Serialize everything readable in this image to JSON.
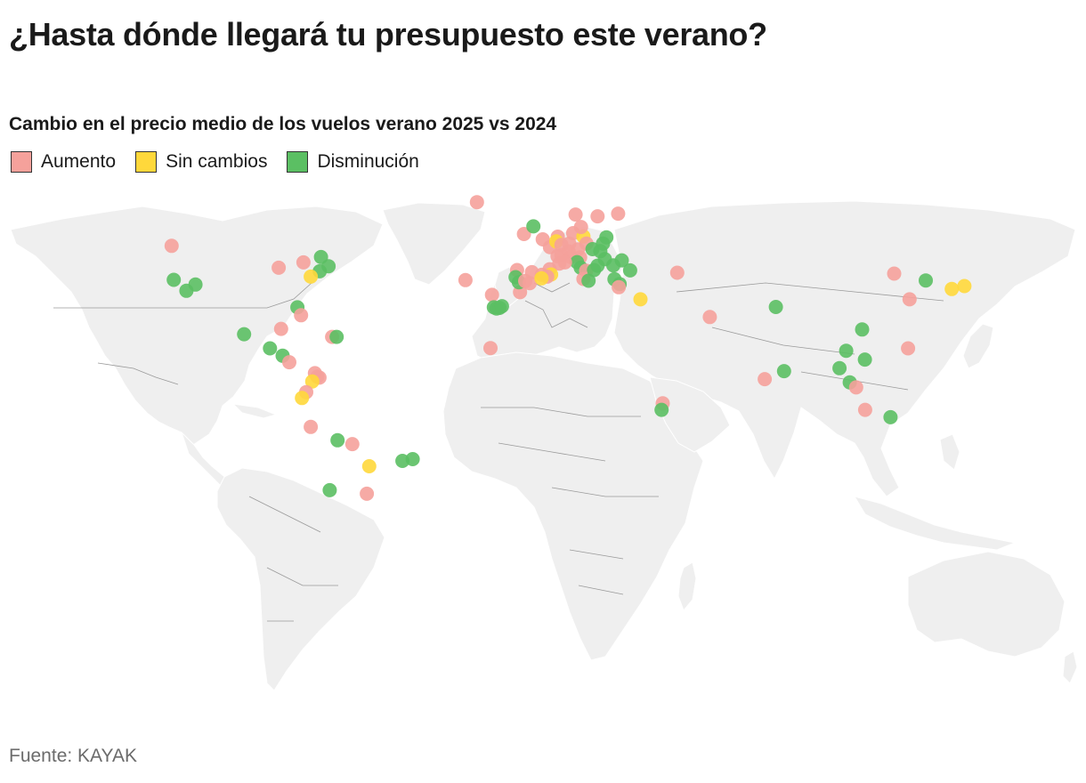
{
  "title": "¿Hasta dónde llegará tu presupuesto este verano?",
  "subtitle": "Cambio en el precio medio de los vuelos verano 2025 vs 2024",
  "legend": [
    {
      "key": "increase",
      "label": "Aumento",
      "color": "#F5A19B"
    },
    {
      "key": "same",
      "label": "Sin cambios",
      "color": "#FFD83B"
    },
    {
      "key": "decrease",
      "label": "Disminución",
      "color": "#5BBF63"
    }
  ],
  "source": "Fuente: KAYAK",
  "map": {
    "land_color": "#EFEFEF",
    "border_color": "#9A9A9A",
    "projection": "equirectangular",
    "markers": [
      {
        "lon": -123.1,
        "lat": 49.3,
        "status": "increase"
      },
      {
        "lon": -122.4,
        "lat": 37.8,
        "status": "decrease"
      },
      {
        "lon": -118.2,
        "lat": 34.1,
        "status": "decrease"
      },
      {
        "lon": -115.2,
        "lat": 36.2,
        "status": "decrease"
      },
      {
        "lon": -87.6,
        "lat": 41.9,
        "status": "increase"
      },
      {
        "lon": -79.4,
        "lat": 43.7,
        "status": "increase"
      },
      {
        "lon": -73.6,
        "lat": 45.5,
        "status": "decrease"
      },
      {
        "lon": -71.1,
        "lat": 42.4,
        "status": "decrease"
      },
      {
        "lon": -74.0,
        "lat": 40.7,
        "status": "decrease"
      },
      {
        "lon": -77.0,
        "lat": 38.9,
        "status": "same"
      },
      {
        "lon": -81.4,
        "lat": 28.5,
        "status": "decrease"
      },
      {
        "lon": -80.2,
        "lat": 25.8,
        "status": "increase"
      },
      {
        "lon": -99.1,
        "lat": 19.4,
        "status": "decrease"
      },
      {
        "lon": -86.8,
        "lat": 21.2,
        "status": "increase"
      },
      {
        "lon": -69.9,
        "lat": 18.5,
        "status": "increase"
      },
      {
        "lon": -68.4,
        "lat": 18.5,
        "status": "decrease"
      },
      {
        "lon": -90.5,
        "lat": 14.6,
        "status": "decrease"
      },
      {
        "lon": -86.3,
        "lat": 12.1,
        "status": "decrease"
      },
      {
        "lon": -84.1,
        "lat": 9.9,
        "status": "increase"
      },
      {
        "lon": -75.6,
        "lat": 6.2,
        "status": "increase"
      },
      {
        "lon": -74.8,
        "lat": 5.0,
        "status": "increase"
      },
      {
        "lon": -74.1,
        "lat": 4.7,
        "status": "increase"
      },
      {
        "lon": -76.5,
        "lat": 3.4,
        "status": "same"
      },
      {
        "lon": -78.5,
        "lat": -0.2,
        "status": "increase"
      },
      {
        "lon": -79.9,
        "lat": -2.2,
        "status": "same"
      },
      {
        "lon": -77.0,
        "lat": -12.0,
        "status": "increase"
      },
      {
        "lon": -68.1,
        "lat": -16.5,
        "status": "decrease"
      },
      {
        "lon": -63.2,
        "lat": -17.8,
        "status": "increase"
      },
      {
        "lon": -57.6,
        "lat": -25.3,
        "status": "same"
      },
      {
        "lon": -46.6,
        "lat": -23.5,
        "status": "decrease"
      },
      {
        "lon": -43.2,
        "lat": -22.9,
        "status": "decrease"
      },
      {
        "lon": -70.7,
        "lat": -33.4,
        "status": "decrease"
      },
      {
        "lon": -58.4,
        "lat": -34.6,
        "status": "increase"
      },
      {
        "lon": -21.9,
        "lat": 64.1,
        "status": "increase"
      },
      {
        "lon": -25.7,
        "lat": 37.7,
        "status": "increase"
      },
      {
        "lon": -16.9,
        "lat": 32.7,
        "status": "increase"
      },
      {
        "lon": -16.3,
        "lat": 28.5,
        "status": "decrease"
      },
      {
        "lon": -15.4,
        "lat": 28.1,
        "status": "decrease"
      },
      {
        "lon": -14.4,
        "lat": 28.3,
        "status": "decrease"
      },
      {
        "lon": -13.6,
        "lat": 28.9,
        "status": "decrease"
      },
      {
        "lon": -7.6,
        "lat": 33.6,
        "status": "increase"
      },
      {
        "lon": -17.4,
        "lat": 14.7,
        "status": "increase"
      },
      {
        "lon": -6.3,
        "lat": 53.3,
        "status": "increase"
      },
      {
        "lon": -3.2,
        "lat": 55.9,
        "status": "decrease"
      },
      {
        "lon": -0.1,
        "lat": 51.5,
        "status": "increase"
      },
      {
        "lon": 2.3,
        "lat": 48.9,
        "status": "increase"
      },
      {
        "lon": 4.9,
        "lat": 52.4,
        "status": "increase"
      },
      {
        "lon": 4.4,
        "lat": 50.8,
        "status": "same"
      },
      {
        "lon": 6.1,
        "lat": 49.6,
        "status": "increase"
      },
      {
        "lon": 8.7,
        "lat": 50.1,
        "status": "increase"
      },
      {
        "lon": 10.0,
        "lat": 53.6,
        "status": "increase"
      },
      {
        "lon": 13.4,
        "lat": 52.5,
        "status": "same"
      },
      {
        "lon": 12.6,
        "lat": 55.7,
        "status": "increase"
      },
      {
        "lon": 10.8,
        "lat": 59.9,
        "status": "increase"
      },
      {
        "lon": 18.1,
        "lat": 59.3,
        "status": "increase"
      },
      {
        "lon": 24.9,
        "lat": 60.2,
        "status": "increase"
      },
      {
        "lon": 21.0,
        "lat": 52.2,
        "status": "decrease"
      },
      {
        "lon": 19.9,
        "lat": 50.1,
        "status": "decrease"
      },
      {
        "lon": 14.4,
        "lat": 50.1,
        "status": "increase"
      },
      {
        "lon": 16.4,
        "lat": 48.2,
        "status": "decrease"
      },
      {
        "lon": 19.0,
        "lat": 47.5,
        "status": "decrease"
      },
      {
        "lon": 11.6,
        "lat": 48.1,
        "status": "increase"
      },
      {
        "lon": 8.5,
        "lat": 47.4,
        "status": "increase"
      },
      {
        "lon": 6.1,
        "lat": 46.2,
        "status": "increase"
      },
      {
        "lon": 4.8,
        "lat": 45.8,
        "status": "increase"
      },
      {
        "lon": 9.2,
        "lat": 45.5,
        "status": "increase"
      },
      {
        "lon": 12.3,
        "lat": 45.4,
        "status": "increase"
      },
      {
        "lon": 11.3,
        "lat": 43.8,
        "status": "decrease"
      },
      {
        "lon": 12.5,
        "lat": 41.9,
        "status": "decrease"
      },
      {
        "lon": 14.3,
        "lat": 40.9,
        "status": "increase"
      },
      {
        "lon": 13.4,
        "lat": 38.1,
        "status": "increase"
      },
      {
        "lon": 15.1,
        "lat": 37.5,
        "status": "decrease"
      },
      {
        "lon": 16.9,
        "lat": 41.1,
        "status": "decrease"
      },
      {
        "lon": 18.1,
        "lat": 42.6,
        "status": "decrease"
      },
      {
        "lon": 20.5,
        "lat": 44.8,
        "status": "decrease"
      },
      {
        "lon": 23.3,
        "lat": 42.7,
        "status": "decrease"
      },
      {
        "lon": 26.1,
        "lat": 44.4,
        "status": "decrease"
      },
      {
        "lon": 23.7,
        "lat": 38.0,
        "status": "decrease"
      },
      {
        "lon": 25.4,
        "lat": 36.4,
        "status": "decrease"
      },
      {
        "lon": 28.9,
        "lat": 41.0,
        "status": "decrease"
      },
      {
        "lon": 25.1,
        "lat": 35.3,
        "status": "increase"
      },
      {
        "lon": 32.3,
        "lat": 31.2,
        "status": "same"
      },
      {
        "lon": 44.5,
        "lat": 40.2,
        "status": "increase"
      },
      {
        "lon": 55.3,
        "lat": 25.2,
        "status": "increase"
      },
      {
        "lon": 7.3,
        "lat": 43.7,
        "status": "increase"
      },
      {
        "lon": 5.4,
        "lat": 43.3,
        "status": "increase"
      },
      {
        "lon": 2.2,
        "lat": 41.4,
        "status": "increase"
      },
      {
        "lon": 2.7,
        "lat": 39.6,
        "status": "same"
      },
      {
        "lon": -3.7,
        "lat": 40.4,
        "status": "increase"
      },
      {
        "lon": -8.6,
        "lat": 41.1,
        "status": "increase"
      },
      {
        "lon": -9.1,
        "lat": 38.7,
        "status": "decrease"
      },
      {
        "lon": -8.0,
        "lat": 37.0,
        "status": "decrease"
      },
      {
        "lon": -5.9,
        "lat": 37.4,
        "status": "increase"
      },
      {
        "lon": -4.4,
        "lat": 36.7,
        "status": "increase"
      },
      {
        "lon": -0.4,
        "lat": 39.5,
        "status": "increase"
      },
      {
        "lon": 1.4,
        "lat": 38.9,
        "status": "increase"
      },
      {
        "lon": -0.5,
        "lat": 38.3,
        "status": "same"
      },
      {
        "lon": 77.2,
        "lat": 28.6,
        "status": "decrease"
      },
      {
        "lon": 73.5,
        "lat": 4.2,
        "status": "increase"
      },
      {
        "lon": 79.9,
        "lat": 6.9,
        "status": "decrease"
      },
      {
        "lon": 100.5,
        "lat": 13.8,
        "status": "decrease"
      },
      {
        "lon": 98.3,
        "lat": 7.9,
        "status": "decrease"
      },
      {
        "lon": 101.7,
        "lat": 3.1,
        "status": "decrease"
      },
      {
        "lon": 103.8,
        "lat": 1.4,
        "status": "increase"
      },
      {
        "lon": 106.7,
        "lat": 10.8,
        "status": "decrease"
      },
      {
        "lon": 105.8,
        "lat": 21.0,
        "status": "decrease"
      },
      {
        "lon": 121.0,
        "lat": 14.6,
        "status": "increase"
      },
      {
        "lon": 106.8,
        "lat": -6.2,
        "status": "increase"
      },
      {
        "lon": 115.2,
        "lat": -8.7,
        "status": "decrease"
      },
      {
        "lon": 116.4,
        "lat": 39.9,
        "status": "increase"
      },
      {
        "lon": 121.5,
        "lat": 31.2,
        "status": "increase"
      },
      {
        "lon": 126.9,
        "lat": 37.6,
        "status": "decrease"
      },
      {
        "lon": 135.5,
        "lat": 34.7,
        "status": "same"
      },
      {
        "lon": 139.7,
        "lat": 35.7,
        "status": "same"
      },
      {
        "lon": 39.7,
        "lat": -4.0,
        "status": "increase"
      },
      {
        "lon": 39.3,
        "lat": -6.2,
        "status": "decrease"
      }
    ]
  }
}
